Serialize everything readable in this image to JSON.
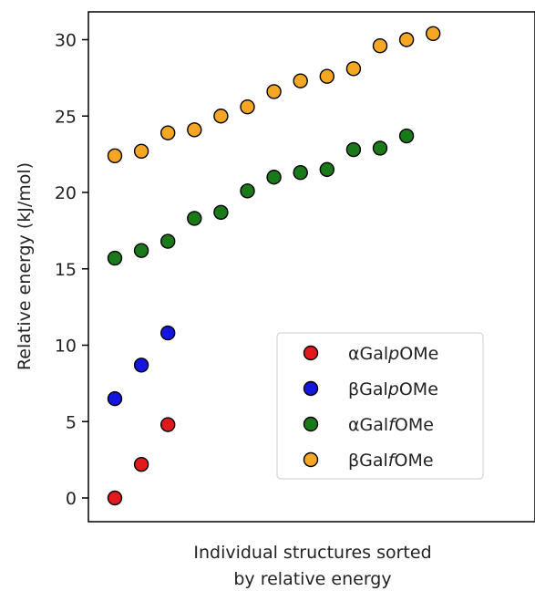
{
  "chart_data": {
    "type": "scatter",
    "title": "",
    "ylabel": "Relative energy (kJ/mol)",
    "xlabel_lines": [
      "Individual structures sorted",
      "by relative energy"
    ],
    "ylim": [
      -1.5,
      32
    ],
    "xlim": [
      0,
      16.5
    ],
    "yticks": [
      0,
      5,
      10,
      15,
      20,
      25,
      30
    ],
    "x_ticks_shown": false,
    "grid": false,
    "legend_position": "lower-right",
    "series": [
      {
        "legend_prefix": "αGal",
        "legend_italic": "p",
        "legend_suffix": "OMe",
        "color": "#e31a1c",
        "x": [
          1,
          2,
          3
        ],
        "y": [
          0.0,
          2.2,
          4.8
        ]
      },
      {
        "legend_prefix": "βGal",
        "legend_italic": "p",
        "legend_suffix": "OMe",
        "color": "#1515e0",
        "x": [
          1,
          2,
          3
        ],
        "y": [
          6.5,
          8.7,
          10.8
        ]
      },
      {
        "legend_prefix": "αGal",
        "legend_italic": "f",
        "legend_suffix": "OMe",
        "color": "#1a7a1a",
        "x": [
          1,
          2,
          3,
          4,
          5,
          6,
          7,
          8,
          9,
          10,
          11,
          12
        ],
        "y": [
          15.7,
          16.2,
          16.8,
          18.3,
          18.7,
          20.1,
          21.0,
          21.3,
          21.5,
          22.8,
          22.9,
          23.7
        ]
      },
      {
        "legend_prefix": "βGal",
        "legend_italic": "f",
        "legend_suffix": "OMe",
        "color": "#f5a623",
        "x": [
          1,
          2,
          3,
          4,
          5,
          6,
          7,
          8,
          9,
          10,
          11,
          12,
          13
        ],
        "y": [
          22.4,
          22.7,
          23.9,
          24.1,
          25.0,
          25.6,
          26.6,
          27.3,
          27.6,
          28.1,
          29.6,
          30.0,
          30.4
        ]
      }
    ]
  }
}
